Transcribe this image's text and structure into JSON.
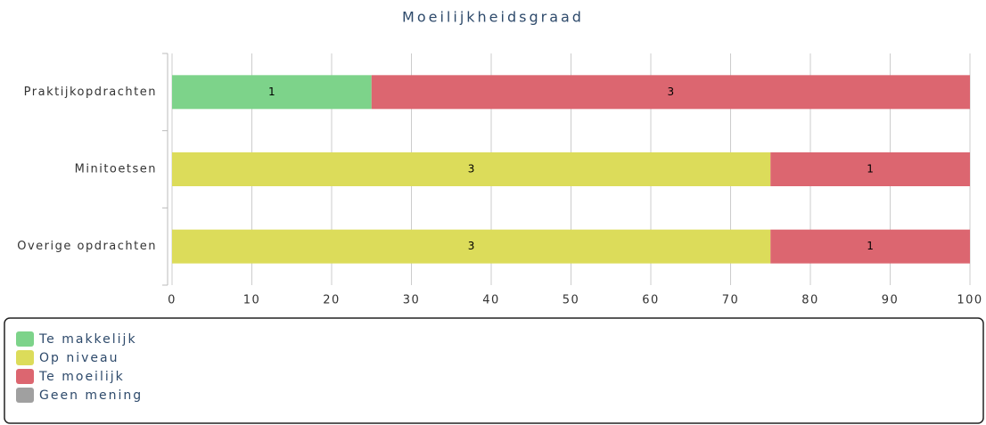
{
  "chart_data": {
    "type": "bar",
    "orientation": "horizontal",
    "stacking": "percent",
    "title": "Moeilijkheidsgraad",
    "categories": [
      "Praktijkopdrachten",
      "Minitoetsen",
      "Overige opdrachten"
    ],
    "series": [
      {
        "name": "Te makkelijk",
        "color": "#7dd38a",
        "values": [
          1,
          0,
          0
        ]
      },
      {
        "name": "Op niveau",
        "color": "#dcdc5a",
        "values": [
          0,
          3,
          3
        ]
      },
      {
        "name": "Te moeilijk",
        "color": "#dc6670",
        "values": [
          3,
          1,
          1
        ]
      },
      {
        "name": "Geen mening",
        "color": "#a0a0a0",
        "values": [
          0,
          0,
          0
        ]
      }
    ],
    "xlim": [
      0,
      100
    ],
    "xticks": [
      0,
      10,
      20,
      30,
      40,
      50,
      60,
      70,
      80,
      90,
      100
    ],
    "grid": true
  }
}
